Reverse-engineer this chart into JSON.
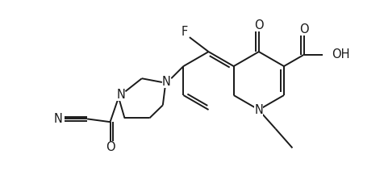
{
  "bg_color": "#ffffff",
  "line_color": "#1a1a1a",
  "line_width": 1.4,
  "font_size": 10.5,
  "fig_width": 4.76,
  "fig_height": 2.38,
  "dpi": 100,
  "xlim": [
    0,
    10
  ],
  "ylim": [
    0,
    5
  ]
}
